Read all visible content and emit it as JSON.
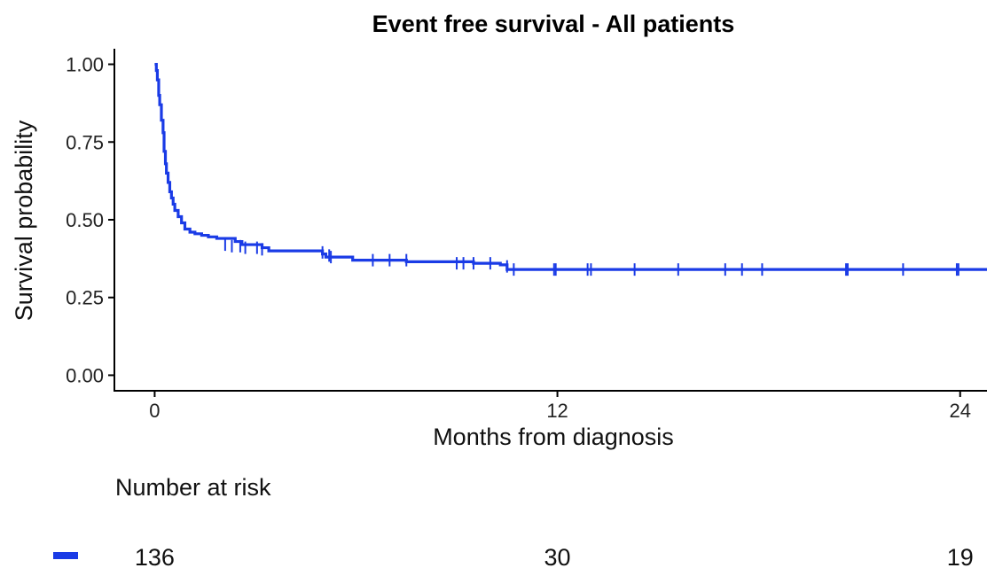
{
  "chart_data": {
    "type": "line",
    "title": "Event free survival - All patients",
    "xlabel": "Months from diagnosis",
    "ylabel": "Survival probability",
    "xlim": [
      -1.2,
      24.8
    ],
    "ylim": [
      -0.05,
      1.05
    ],
    "x_ticks": [
      0,
      12,
      24
    ],
    "x_tick_labels": [
      "0",
      "12",
      "24"
    ],
    "y_ticks": [
      0,
      0.25,
      0.5,
      0.75,
      1.0
    ],
    "y_tick_labels": [
      "0.00",
      "0.25",
      "0.50",
      "0.75",
      "1.00"
    ],
    "grid": false,
    "legend": "none",
    "series": [
      {
        "color": "#1a3be6",
        "step_points": [
          [
            0.0,
            1.0
          ],
          [
            0.05,
            0.98
          ],
          [
            0.08,
            0.95
          ],
          [
            0.12,
            0.9
          ],
          [
            0.15,
            0.87
          ],
          [
            0.2,
            0.82
          ],
          [
            0.25,
            0.78
          ],
          [
            0.28,
            0.72
          ],
          [
            0.32,
            0.68
          ],
          [
            0.35,
            0.65
          ],
          [
            0.4,
            0.62
          ],
          [
            0.45,
            0.59
          ],
          [
            0.5,
            0.57
          ],
          [
            0.55,
            0.55
          ],
          [
            0.6,
            0.53
          ],
          [
            0.7,
            0.51
          ],
          [
            0.8,
            0.49
          ],
          [
            0.9,
            0.47
          ],
          [
            1.05,
            0.46
          ],
          [
            1.2,
            0.455
          ],
          [
            1.4,
            0.45
          ],
          [
            1.6,
            0.445
          ],
          [
            2.0,
            0.44
          ],
          [
            1.85,
            0.44
          ],
          [
            2.1,
            0.44
          ],
          [
            2.4,
            0.43
          ],
          [
            2.6,
            0.42
          ],
          [
            3.2,
            0.41
          ],
          [
            3.4,
            0.4
          ],
          [
            5.0,
            0.39
          ],
          [
            5.1,
            0.38
          ],
          [
            5.2,
            0.38
          ],
          [
            5.9,
            0.37
          ],
          [
            7.5,
            0.365
          ],
          [
            9.5,
            0.36
          ],
          [
            10.3,
            0.355
          ],
          [
            10.5,
            0.35
          ],
          [
            10.5,
            0.34
          ],
          [
            24.8,
            0.34
          ]
        ],
        "censor_marks": [
          [
            2.1,
            0.42
          ],
          [
            2.3,
            0.415
          ],
          [
            2.55,
            0.415
          ],
          [
            2.7,
            0.41
          ],
          [
            3.05,
            0.41
          ],
          [
            3.2,
            0.405
          ],
          [
            5.0,
            0.395
          ],
          [
            5.2,
            0.385
          ],
          [
            5.25,
            0.38
          ],
          [
            6.5,
            0.37
          ],
          [
            7.0,
            0.37
          ],
          [
            7.5,
            0.37
          ],
          [
            9.0,
            0.36
          ],
          [
            9.2,
            0.36
          ],
          [
            9.5,
            0.36
          ],
          [
            10.0,
            0.36
          ],
          [
            10.5,
            0.35
          ],
          [
            10.7,
            0.34
          ],
          [
            11.9,
            0.34
          ],
          [
            11.95,
            0.34
          ],
          [
            12.9,
            0.34
          ],
          [
            13.0,
            0.34
          ],
          [
            14.3,
            0.34
          ],
          [
            15.6,
            0.34
          ],
          [
            17.0,
            0.34
          ],
          [
            17.5,
            0.34
          ],
          [
            18.1,
            0.34
          ],
          [
            20.6,
            0.34
          ],
          [
            20.65,
            0.34
          ],
          [
            22.3,
            0.34
          ],
          [
            23.9,
            0.34
          ],
          [
            23.95,
            0.34
          ]
        ]
      }
    ],
    "risk_table": {
      "title": "Number at risk",
      "strata_color": "#1a3be6",
      "times": [
        0,
        12,
        24
      ],
      "counts": [
        136,
        30,
        19
      ]
    }
  }
}
